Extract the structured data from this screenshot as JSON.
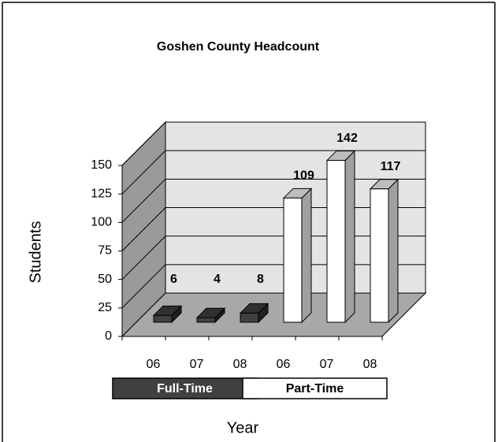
{
  "chart_data": {
    "type": "bar3d",
    "title": "Goshen County Headcount",
    "x_label": "Year",
    "y_label": "Students",
    "categories": [
      "06",
      "07",
      "08",
      "06",
      "07",
      "08"
    ],
    "series": [
      {
        "name": "Full-Time",
        "color": "#404040",
        "values": [
          6,
          4,
          8,
          null,
          null,
          null
        ]
      },
      {
        "name": "Part-Time",
        "color": "#ffffff",
        "values": [
          null,
          null,
          null,
          109,
          142,
          117
        ]
      }
    ],
    "ylim": [
      0,
      150
    ],
    "yticks": [
      0,
      25,
      50,
      75,
      100,
      125,
      150
    ],
    "grid": true
  }
}
